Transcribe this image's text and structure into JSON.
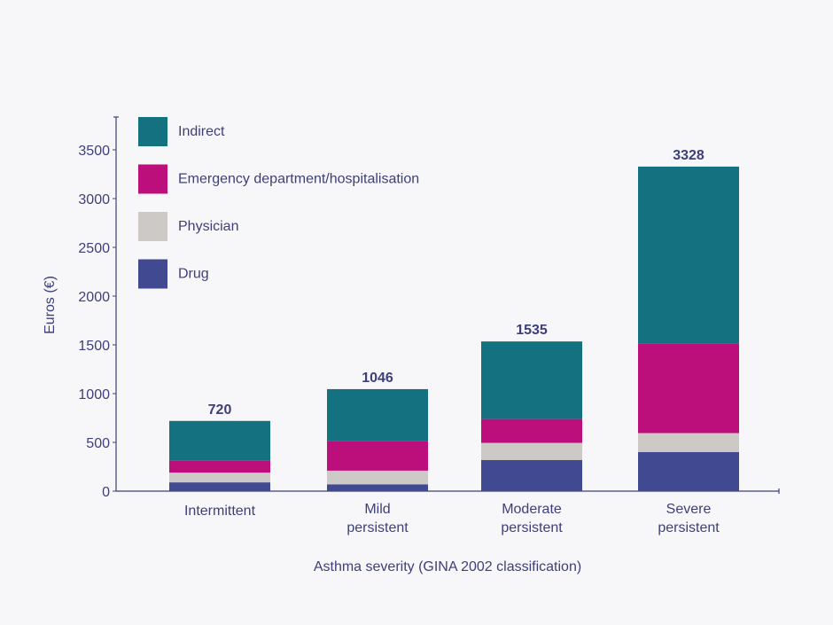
{
  "chart_data": {
    "type": "bar",
    "stacked": true,
    "categories": [
      [
        "Intermittent"
      ],
      [
        "Mild",
        "persistent"
      ],
      [
        "Moderate",
        "persistent"
      ],
      [
        "Severe",
        "persistent"
      ]
    ],
    "series": [
      {
        "name": "Drug",
        "color": "#414a91",
        "values": [
          90,
          70,
          320,
          400
        ]
      },
      {
        "name": "Physician",
        "color": "#cdc9c6",
        "values": [
          100,
          140,
          175,
          195
        ]
      },
      {
        "name": "Emergency department/hospitalisation",
        "color": "#bd0f7b",
        "values": [
          120,
          305,
          245,
          915
        ]
      },
      {
        "name": "Indirect",
        "color": "#147180",
        "values": [
          410,
          531,
          795,
          1818
        ]
      }
    ],
    "totals": [
      "720",
      "1046",
      "1535",
      "3328"
    ],
    "xlabel": "Asthma severity (GINA 2002 classification)",
    "ylabel": "Euros (€)",
    "ylim": [
      0,
      3800
    ],
    "yticks": [
      0,
      500,
      1000,
      1500,
      2000,
      2500,
      3000,
      3500
    ],
    "legend_order": [
      "Indirect",
      "Emergency department/hospitalisation",
      "Physician",
      "Drug"
    ],
    "legend_position": "top-left",
    "grid": false,
    "axis_color": "#3d3f7a"
  }
}
